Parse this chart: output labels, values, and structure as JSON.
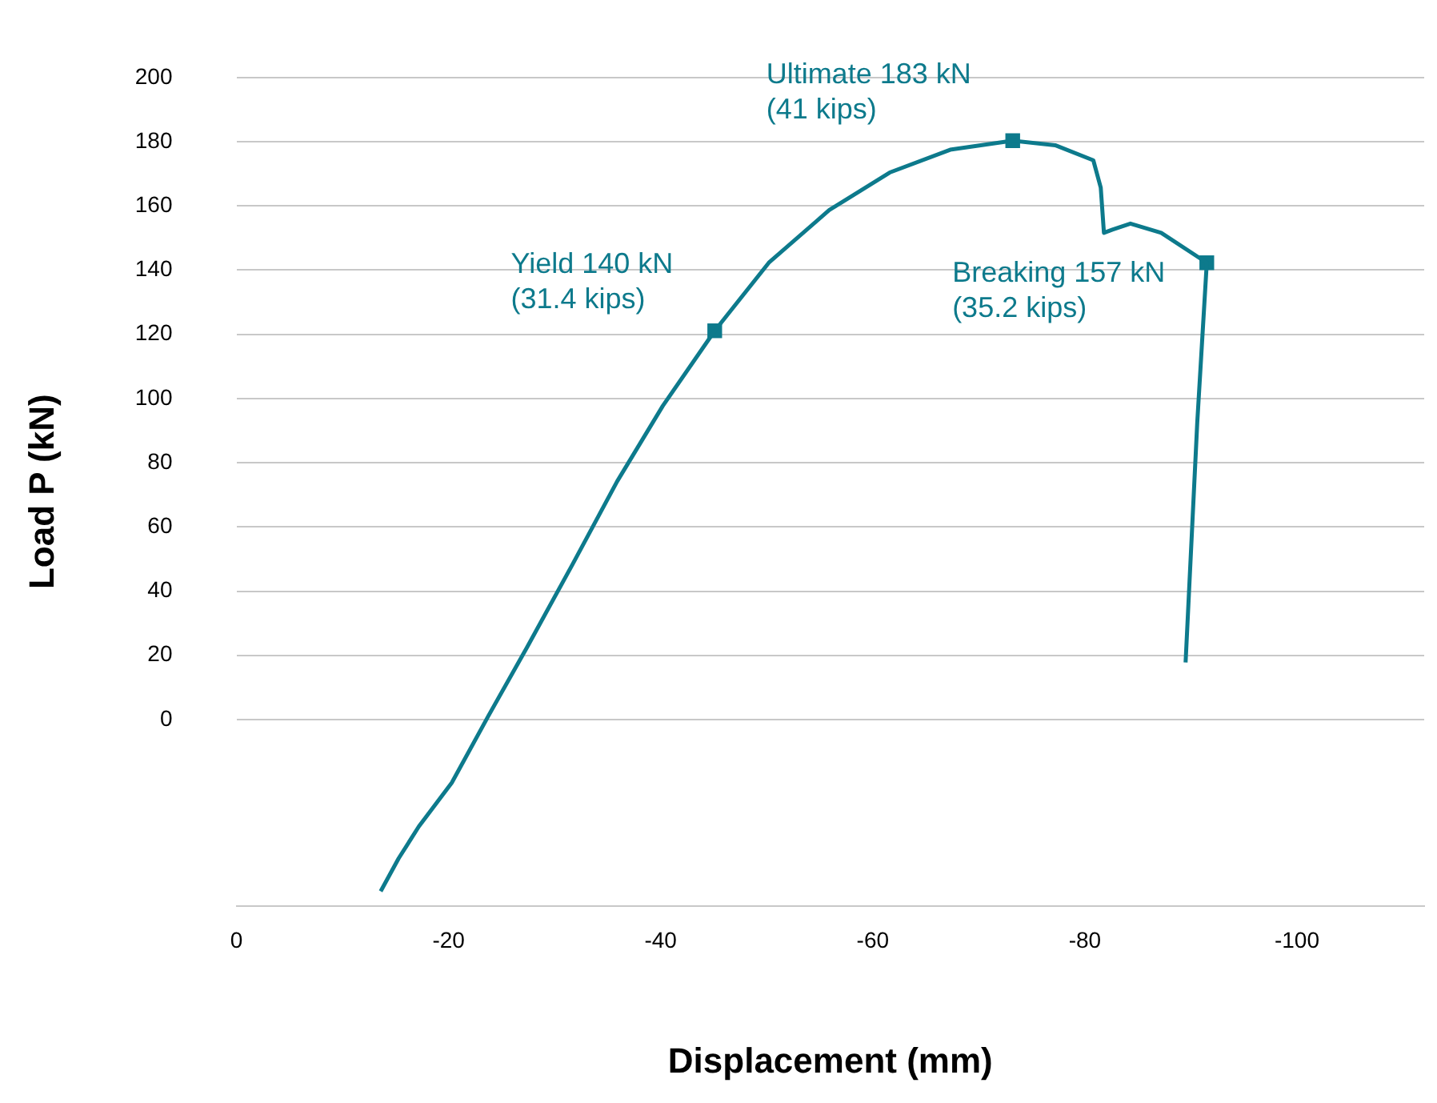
{
  "chart_data": {
    "type": "line",
    "xlabel": "Displacement (mm)",
    "ylabel": "Load P (kN)",
    "xlim": [
      0,
      -112
    ],
    "xticks": [
      0,
      -20,
      -40,
      -60,
      -80,
      -100
    ],
    "ylim": [
      -58,
      200
    ],
    "yticks": [
      0,
      20,
      40,
      60,
      80,
      100,
      120,
      140,
      160,
      180,
      200
    ],
    "grid": "y",
    "legend": false,
    "marker": "none",
    "series": [
      {
        "color": "#0d7a8c",
        "x": [
          -13.6,
          -15.3,
          -17.2,
          -20.3,
          -23.8,
          -27.4,
          -31.7,
          -35.9,
          -40.2,
          -45.1,
          -50.2,
          -55.9,
          -61.6,
          -67.3,
          -73.2,
          -77.2,
          -80.8,
          -81.5,
          -81.8,
          -82.6,
          -84.3,
          -87.2,
          -91.5,
          -90.6,
          -89.5
        ],
        "values": [
          -53.5,
          -43.2,
          -33.3,
          -19.7,
          1.4,
          22.5,
          48.4,
          74.2,
          97.7,
          121.1,
          142.3,
          158.7,
          170.4,
          177.5,
          180.3,
          178.9,
          174.2,
          165.7,
          151.6,
          152.6,
          154.5,
          151.6,
          142.3,
          92.5,
          17.8
        ]
      },
      {
        "type": "scatter",
        "marker": "square",
        "color": "#0d7a8c",
        "x": [
          -45.1,
          -73.2,
          -91.5
        ],
        "values": [
          121.1,
          180.3,
          142.3
        ]
      }
    ],
    "annotations": [
      {
        "text": "Yield 140 kN\n(31.4 kips)",
        "x": -45.1,
        "y": 121.1
      },
      {
        "text": "Ultimate 183 kN\n(41 kips)",
        "x": -73.2,
        "y": 180.3
      },
      {
        "text": "Breaking 157 kN\n(35.2 kips)",
        "x": -91.5,
        "y": 142.3
      }
    ]
  }
}
